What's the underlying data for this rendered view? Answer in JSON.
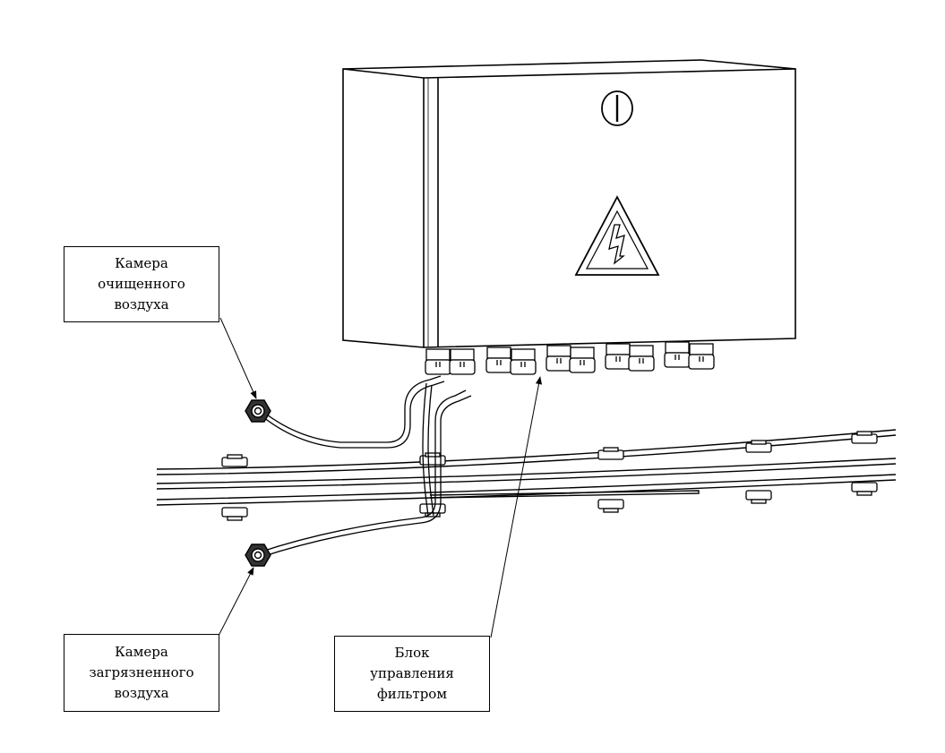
{
  "callouts": {
    "clean_air_chamber": {
      "lines": [
        "Камера",
        "очищенного",
        "воздуха"
      ]
    },
    "dirty_air_chamber": {
      "lines": [
        "Камера",
        "загрязненного",
        "воздуха"
      ]
    },
    "filter_control_unit": {
      "lines": [
        "Блок",
        "управления",
        "фильтром"
      ]
    }
  },
  "colors": {
    "stroke": "#000000",
    "background": "#ffffff"
  },
  "icons": [
    "power-symbol-icon",
    "high-voltage-warning-icon"
  ]
}
